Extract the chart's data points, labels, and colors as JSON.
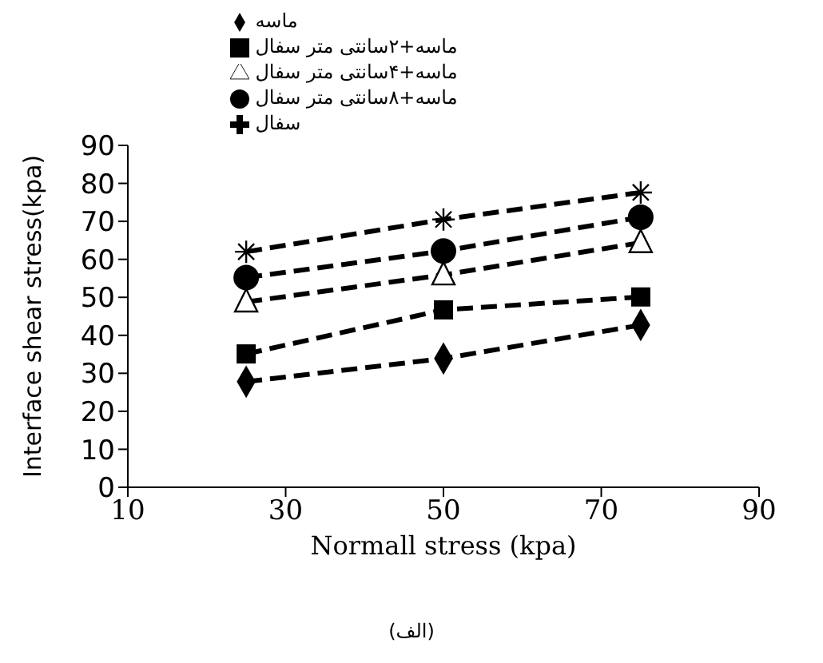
{
  "chart_data": {
    "type": "line",
    "xlabel": "Normall stress (kpa)",
    "ylabel": "Interface shear stress(kpa)",
    "annotations": [
      "(الف)"
    ],
    "x": [
      25,
      50,
      75
    ],
    "xlim": [
      10,
      90
    ],
    "xticks": [
      10,
      30,
      50,
      70,
      90
    ],
    "ylim": [
      0,
      90
    ],
    "yticks": [
      0,
      10,
      20,
      30,
      40,
      50,
      60,
      70,
      80,
      90
    ],
    "grid": false,
    "legend": "top",
    "line_style": "dashed",
    "series": [
      {
        "name": "ماسه",
        "color": "#000000",
        "marker": "diamond",
        "values": [
          27.8,
          33.9,
          42.7
        ]
      },
      {
        "name": "ماسه+۲سانتی متر سفال",
        "color": "#000000",
        "marker": "square",
        "values": [
          35.1,
          46.7,
          50.1
        ]
      },
      {
        "name": "ماسه+۴سانتی متر سفال",
        "color": "#000000",
        "marker": "triangle",
        "values": [
          48.8,
          55.9,
          64.4
        ]
      },
      {
        "name": "ماسه+۸سانتی متر سفال",
        "color": "#000000",
        "marker": "circle",
        "values": [
          55.2,
          62.2,
          71.1
        ]
      },
      {
        "name": "سفال",
        "color": "#000000",
        "marker": "cross",
        "values": [
          62,
          70.5,
          77.6
        ]
      }
    ]
  }
}
